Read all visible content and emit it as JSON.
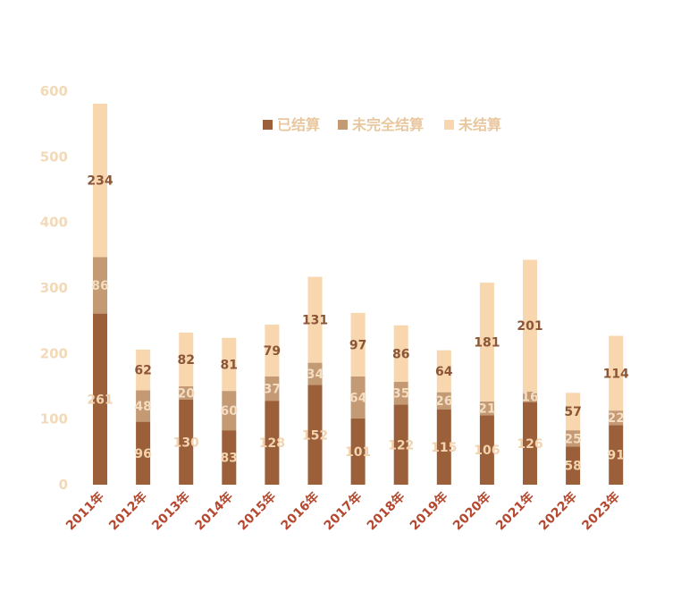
{
  "chart_data": {
    "type": "bar",
    "stacked": true,
    "categories": [
      "2011年",
      "2012年",
      "2013年",
      "2014年",
      "2015年",
      "2016年",
      "2017年",
      "2018年",
      "2019年",
      "2020年",
      "2021年",
      "2022年",
      "2023年"
    ],
    "series": [
      {
        "name": "已结算",
        "color": "#9b5f3a",
        "label_color": "#f2d3ae",
        "values": [
          261,
          96,
          130,
          83,
          128,
          152,
          101,
          122,
          115,
          106,
          126,
          58,
          91
        ]
      },
      {
        "name": "未完全结算",
        "color": "#c49a75",
        "label_color": "#f3dcc0",
        "values": [
          86,
          48,
          20,
          60,
          37,
          34,
          64,
          35,
          26,
          21,
          16,
          25,
          22
        ]
      },
      {
        "name": "未结算",
        "color": "#f8d6ae",
        "label_color": "#8b5637",
        "values": [
          234,
          62,
          82,
          81,
          79,
          131,
          97,
          86,
          64,
          181,
          201,
          57,
          114
        ]
      }
    ],
    "yticks": [
      0,
      100,
      200,
      300,
      400,
      500,
      600
    ],
    "ylim": [
      0,
      600
    ],
    "legend_position": "top-center",
    "grid": false
  }
}
